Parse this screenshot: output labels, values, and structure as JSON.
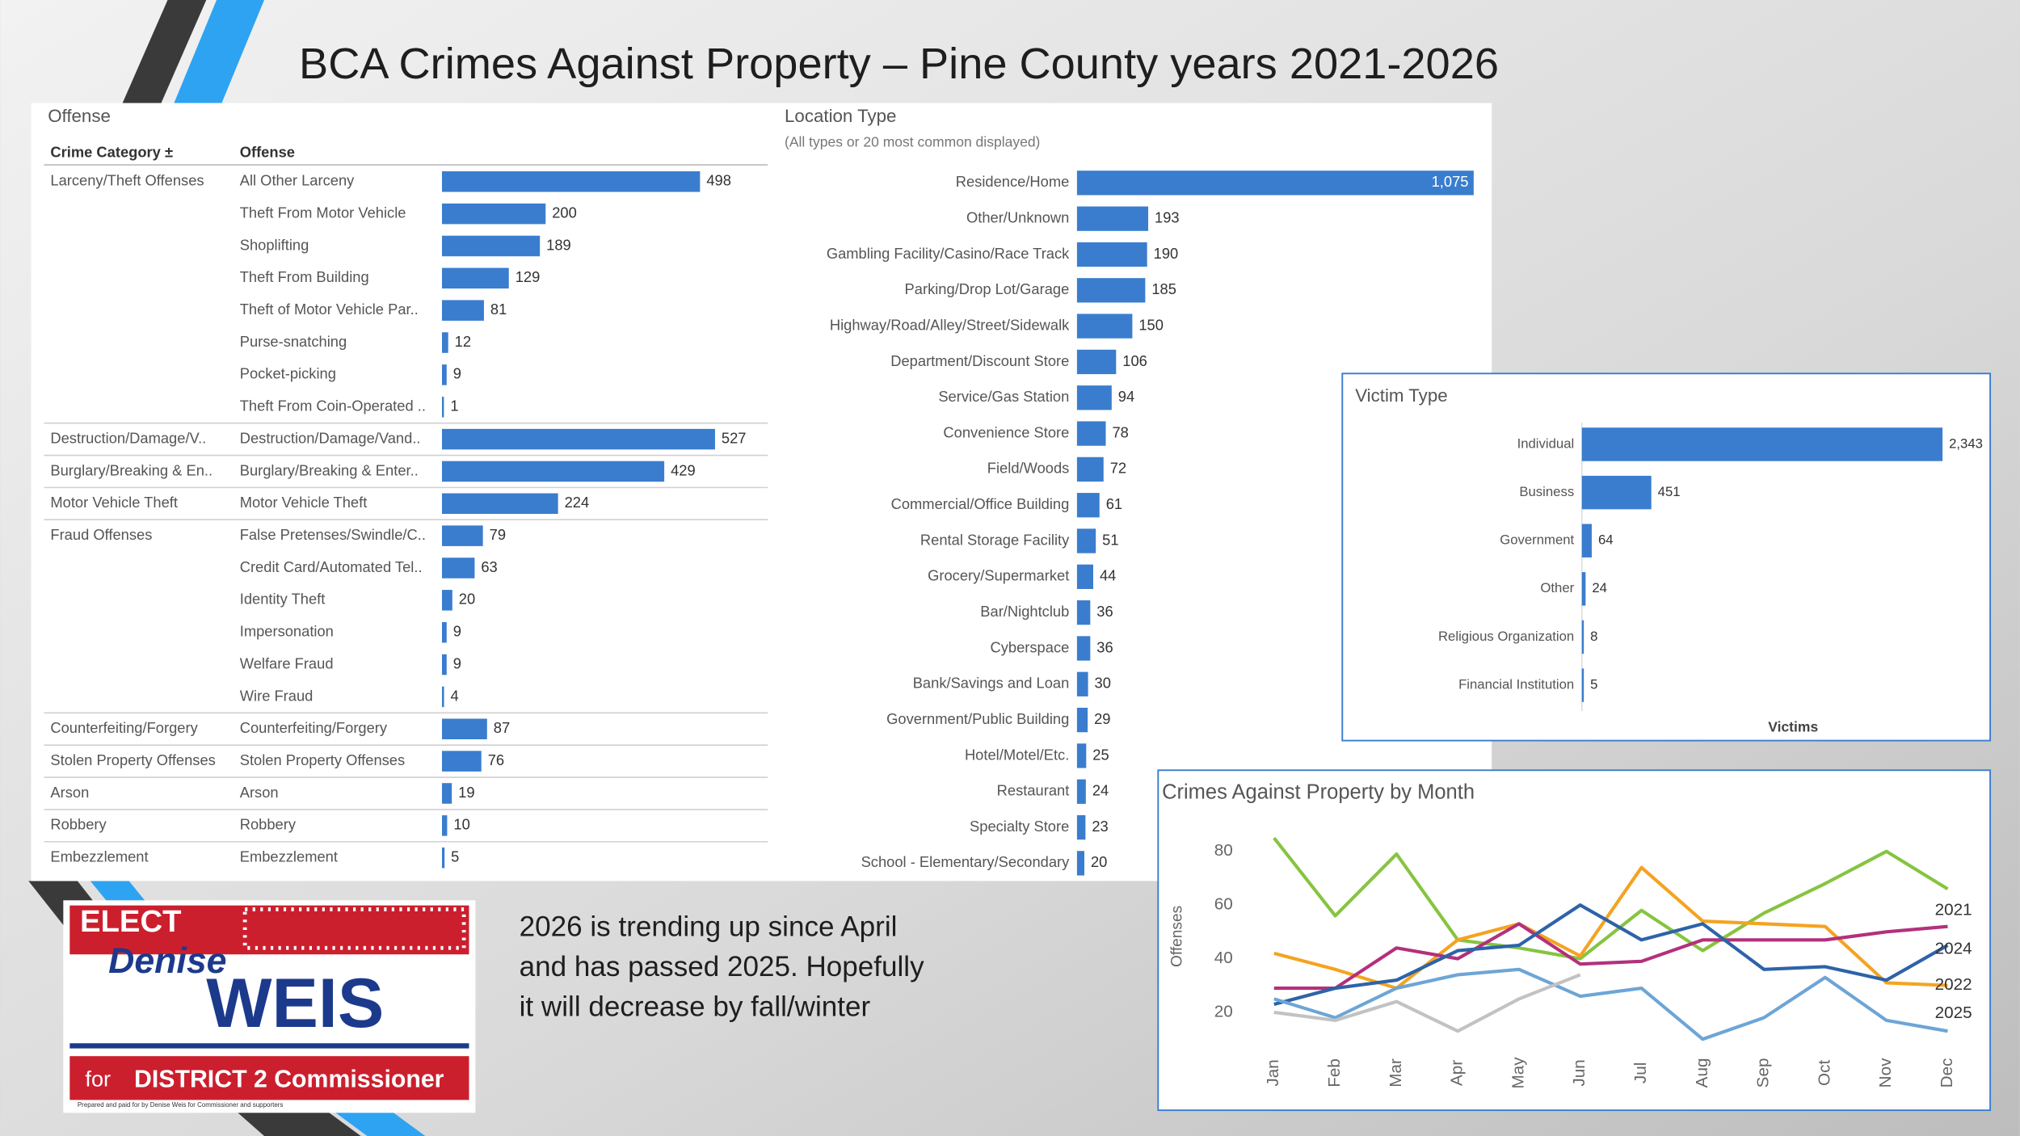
{
  "title": "BCA Crimes Against Property – Pine County years 2021-2026",
  "note": [
    "2026 is trending up since April",
    "and has passed 2025.  Hopefully",
    "it will decrease by fall/winter"
  ],
  "logo": {
    "elect": "ELECT",
    "first_name": "Denise",
    "last_name": "WEIS",
    "for": "for",
    "office": "DISTRICT 2 Commissioner",
    "disclaimer": "Prepared and paid for by Denise Weis for Commissioner and supporters"
  },
  "chart_data": [
    {
      "type": "bar",
      "orientation": "horizontal",
      "title": "Offense",
      "column_headers": [
        "Crime Category ±",
        "Offense"
      ],
      "category_groups": [
        "Larceny/Theft Offenses",
        null,
        null,
        null,
        null,
        null,
        null,
        null,
        "Destruction/Damage/V..",
        "Burglary/Breaking & En..",
        "Motor Vehicle Theft",
        "Fraud Offenses",
        null,
        null,
        null,
        null,
        null,
        "Counterfeiting/Forgery",
        "Stolen Property Offenses",
        "Arson",
        "Robbery",
        "Embezzlement"
      ],
      "categories": [
        "All Other Larceny",
        "Theft From Motor Vehicle",
        "Shoplifting",
        "Theft From Building",
        "Theft of Motor Vehicle Par..",
        "Purse-snatching",
        "Pocket-picking",
        "Theft From Coin-Operated ..",
        "Destruction/Damage/Vand..",
        "Burglary/Breaking & Enter..",
        "Motor Vehicle Theft",
        "False Pretenses/Swindle/C..",
        "Credit Card/Automated Tel..",
        "Identity Theft",
        "Impersonation",
        "Welfare Fraud",
        "Wire Fraud",
        "Counterfeiting/Forgery",
        "Stolen Property Offenses",
        "Arson",
        "Robbery",
        "Embezzlement"
      ],
      "values": [
        498,
        200,
        189,
        129,
        81,
        12,
        9,
        1,
        527,
        429,
        224,
        79,
        63,
        20,
        9,
        9,
        4,
        87,
        76,
        19,
        10,
        5
      ],
      "color": "#3a7dce"
    },
    {
      "type": "bar",
      "orientation": "horizontal",
      "title": "Location Type",
      "subtitle": "(All types or 20 most common displayed)",
      "categories": [
        "Residence/Home",
        "Other/Unknown",
        "Gambling Facility/Casino/Race Track",
        "Parking/Drop Lot/Garage",
        "Highway/Road/Alley/Street/Sidewalk",
        "Department/Discount Store",
        "Service/Gas Station",
        "Convenience Store",
        "Field/Woods",
        "Commercial/Office Building",
        "Rental Storage Facility",
        "Grocery/Supermarket",
        "Bar/Nightclub",
        "Cyberspace",
        "Bank/Savings and Loan",
        "Government/Public Building",
        "Hotel/Motel/Etc.",
        "Restaurant",
        "Specialty Store",
        "School - Elementary/Secondary"
      ],
      "values": [
        1075,
        193,
        190,
        185,
        150,
        106,
        94,
        78,
        72,
        61,
        51,
        44,
        36,
        36,
        30,
        29,
        25,
        24,
        23,
        20
      ],
      "value_labels": [
        "1,075",
        "193",
        "190",
        "185",
        "150",
        "106",
        "94",
        "78",
        "72",
        "61",
        "51",
        "44",
        "36",
        "36",
        "30",
        "29",
        "25",
        "24",
        "23",
        "20"
      ],
      "color": "#3a7dce"
    },
    {
      "type": "bar",
      "orientation": "horizontal",
      "title": "Victim Type",
      "xlabel": "Victims",
      "categories": [
        "Individual",
        "Business",
        "Government",
        "Other",
        "Religious Organization",
        "Financial Institution"
      ],
      "values": [
        2343,
        451,
        64,
        24,
        8,
        5
      ],
      "value_labels": [
        "2,343",
        "451",
        "64",
        "24",
        "8",
        "5"
      ],
      "color": "#3a7dce"
    },
    {
      "type": "line",
      "title": "Crimes Against Property by Month",
      "ylabel": "Offenses",
      "categories": [
        "Jan",
        "Feb",
        "Mar",
        "Apr",
        "May",
        "Jun",
        "Jul",
        "Aug",
        "Sep",
        "Oct",
        "Nov",
        "Dec"
      ],
      "ylim": [
        10,
        90
      ],
      "yticks": [
        20,
        40,
        60,
        80
      ],
      "grid": false,
      "series": [
        {
          "name": "2021",
          "color": "#86c440",
          "values": [
            85,
            56,
            79,
            47,
            44,
            40,
            58,
            43,
            57,
            68,
            80,
            66
          ]
        },
        {
          "name": "2022",
          "color": "#f4a321",
          "values": [
            42,
            36,
            29,
            47,
            53,
            41,
            74,
            54,
            53,
            52,
            31,
            30
          ]
        },
        {
          "name": null,
          "color": "#b3307c",
          "values": [
            29,
            29,
            44,
            40,
            53,
            38,
            39,
            47,
            47,
            47,
            50,
            52
          ]
        },
        {
          "name": "2024",
          "color": "#2d63a8",
          "values": [
            23,
            29,
            32,
            43,
            45,
            60,
            47,
            53,
            36,
            37,
            32,
            45
          ]
        },
        {
          "name": "2025",
          "color": "#6da5d6",
          "values": [
            25,
            18,
            29,
            34,
            36,
            26,
            29,
            10,
            18,
            33,
            17,
            13
          ]
        },
        {
          "name": null,
          "color": "#c2c2c2",
          "values": [
            20,
            17,
            24,
            13,
            25,
            34,
            null,
            null,
            null,
            null,
            null,
            null
          ]
        }
      ]
    }
  ]
}
